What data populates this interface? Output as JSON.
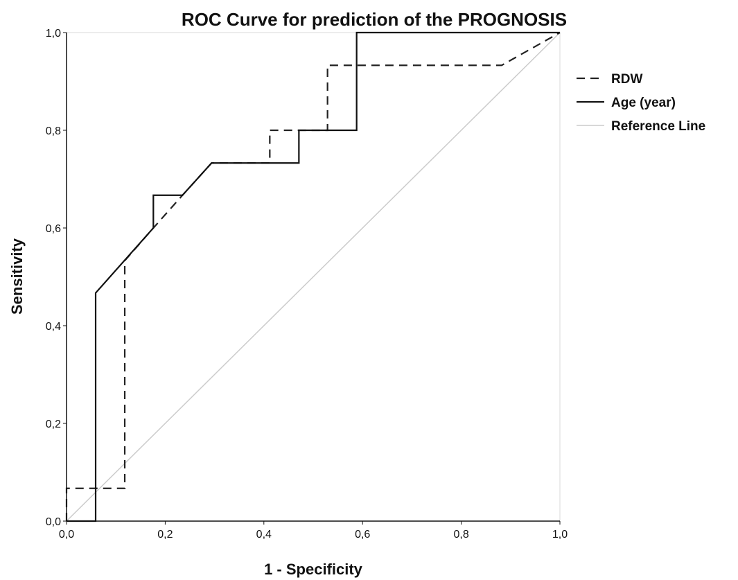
{
  "chart_data": {
    "type": "line",
    "title": "ROC Curve for prediction of the PROGNOSIS",
    "xlabel": "1 - Specificity",
    "ylabel": "Sensitivity",
    "xlim": [
      0,
      1
    ],
    "ylim": [
      0,
      1
    ],
    "x_ticks": [
      "0,0",
      "0,2",
      "0,4",
      "0,6",
      "0,8",
      "1,0"
    ],
    "y_ticks": [
      "0,0",
      "0,2",
      "0,4",
      "0,6",
      "0,8",
      "1,0"
    ],
    "grid": false,
    "legend_position": "right",
    "series": [
      {
        "name": "RDW",
        "style": "dashed",
        "color": "#222222",
        "points": [
          [
            0.0,
            0.0
          ],
          [
            0.0,
            0.067
          ],
          [
            0.118,
            0.067
          ],
          [
            0.118,
            0.533
          ],
          [
            0.176,
            0.6
          ],
          [
            0.235,
            0.667
          ],
          [
            0.294,
            0.733
          ],
          [
            0.412,
            0.733
          ],
          [
            0.412,
            0.8
          ],
          [
            0.529,
            0.8
          ],
          [
            0.529,
            0.933
          ],
          [
            0.882,
            0.933
          ],
          [
            1.0,
            1.0
          ]
        ]
      },
      {
        "name": "Age (year)",
        "style": "solid",
        "color": "#111111",
        "points": [
          [
            0.0,
            0.0
          ],
          [
            0.059,
            0.0
          ],
          [
            0.059,
            0.467
          ],
          [
            0.176,
            0.6
          ],
          [
            0.176,
            0.667
          ],
          [
            0.235,
            0.667
          ],
          [
            0.294,
            0.733
          ],
          [
            0.471,
            0.733
          ],
          [
            0.471,
            0.8
          ],
          [
            0.588,
            0.8
          ],
          [
            0.588,
            1.0
          ],
          [
            1.0,
            1.0
          ]
        ]
      },
      {
        "name": "Reference Line",
        "style": "solid",
        "color": "#cccccc",
        "points": [
          [
            0.0,
            0.0
          ],
          [
            1.0,
            1.0
          ]
        ]
      }
    ]
  }
}
